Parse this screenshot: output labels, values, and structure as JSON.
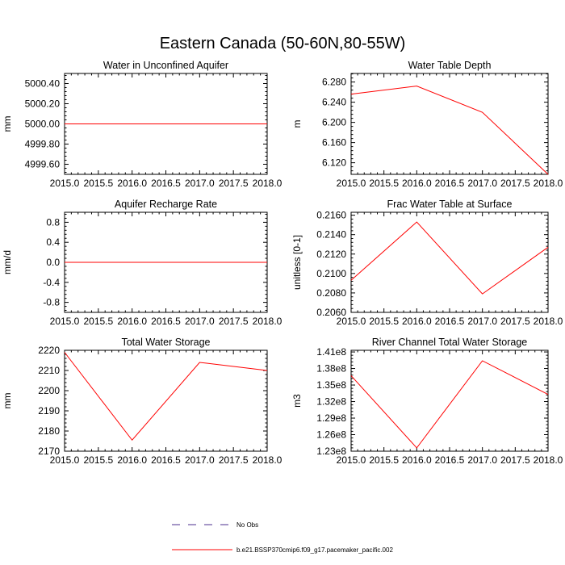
{
  "title": "Eastern Canada (50-60N,80-55W)",
  "colors": {
    "model": "#ff0000",
    "obs": "#4b2f8f",
    "frame": "#000000"
  },
  "legend": {
    "obs_label": "No Obs",
    "model_label": "b.e21.BSSP370cmip6.f09_g17.pacemaker_pacific.002"
  },
  "chart_data": [
    {
      "type": "line",
      "title": "Water in Unconfined Aquifer",
      "ylabel": "mm",
      "xlabel": "",
      "x": [
        2015.0,
        2016.0,
        2017.0,
        2018.0
      ],
      "series": [
        {
          "name": "b.e21.BSSP370cmip6.f09_g17.pacemaker_pacific.002",
          "values": [
            5000.0,
            5000.0,
            5000.0,
            5000.0
          ]
        }
      ],
      "xlim": [
        2015.0,
        2018.0
      ],
      "ylim": [
        4999.5,
        5000.5
      ],
      "xticks": [
        2015.0,
        2015.5,
        2016.0,
        2016.5,
        2017.0,
        2017.5,
        2018.0
      ],
      "xtick_labels": [
        "2015.0",
        "2015.5",
        "2016.0",
        "2016.5",
        "2017.0",
        "2017.5",
        "2018.0"
      ],
      "yticks": [
        4999.6,
        4999.8,
        5000.0,
        5000.2,
        5000.4
      ],
      "ytick_labels": [
        "4999.60",
        "4999.80",
        "5000.00",
        "5000.20",
        "5000.40"
      ]
    },
    {
      "type": "line",
      "title": "Water Table Depth",
      "ylabel": "m",
      "xlabel": "",
      "x": [
        2015.0,
        2016.0,
        2017.0,
        2018.0
      ],
      "series": [
        {
          "name": "b.e21.BSSP370cmip6.f09_g17.pacemaker_pacific.002",
          "values": [
            6.256,
            6.272,
            6.22,
            6.097
          ]
        }
      ],
      "xlim": [
        2015.0,
        2018.0
      ],
      "ylim": [
        6.097,
        6.297
      ],
      "xticks": [
        2015.0,
        2015.5,
        2016.0,
        2016.5,
        2017.0,
        2017.5,
        2018.0
      ],
      "xtick_labels": [
        "2015.0",
        "2015.5",
        "2016.0",
        "2016.5",
        "2017.0",
        "2017.5",
        "2018.0"
      ],
      "yticks": [
        6.12,
        6.16,
        6.2,
        6.24,
        6.28
      ],
      "ytick_labels": [
        "6.120",
        "6.160",
        "6.200",
        "6.240",
        "6.280"
      ]
    },
    {
      "type": "line",
      "title": "Aquifer Recharge Rate",
      "ylabel": "mm/d",
      "xlabel": "",
      "x": [
        2015.0,
        2016.0,
        2017.0,
        2018.0
      ],
      "series": [
        {
          "name": "b.e21.BSSP370cmip6.f09_g17.pacemaker_pacific.002",
          "values": [
            0.0,
            0.0,
            0.0,
            0.0
          ]
        }
      ],
      "xlim": [
        2015.0,
        2018.0
      ],
      "ylim": [
        -1.0,
        1.0
      ],
      "xticks": [
        2015.0,
        2015.5,
        2016.0,
        2016.5,
        2017.0,
        2017.5,
        2018.0
      ],
      "xtick_labels": [
        "2015.0",
        "2015.5",
        "2016.0",
        "2016.5",
        "2017.0",
        "2017.5",
        "2018.0"
      ],
      "yticks": [
        -0.8,
        -0.4,
        0.0,
        0.4,
        0.8
      ],
      "ytick_labels": [
        "-0.8",
        "-0.4",
        "0.0",
        "0.4",
        "0.8"
      ]
    },
    {
      "type": "line",
      "title": "Frac Water Table at Surface",
      "ylabel": "unitless [0-1]",
      "xlabel": "",
      "x": [
        2015.0,
        2016.0,
        2017.0,
        2018.0
      ],
      "series": [
        {
          "name": "b.e21.BSSP370cmip6.f09_g17.pacemaker_pacific.002",
          "values": [
            0.2093,
            0.2153,
            0.2079,
            0.2127
          ]
        }
      ],
      "xlim": [
        2015.0,
        2018.0
      ],
      "ylim": [
        0.206,
        0.2163
      ],
      "xticks": [
        2015.0,
        2015.5,
        2016.0,
        2016.5,
        2017.0,
        2017.5,
        2018.0
      ],
      "xtick_labels": [
        "2015.0",
        "2015.5",
        "2016.0",
        "2016.5",
        "2017.0",
        "2017.5",
        "2018.0"
      ],
      "yticks": [
        0.206,
        0.208,
        0.21,
        0.212,
        0.214,
        0.216
      ],
      "ytick_labels": [
        "0.2060",
        "0.2080",
        "0.2100",
        "0.2120",
        "0.2140",
        "0.2160"
      ]
    },
    {
      "type": "line",
      "title": "Total Water Storage",
      "ylabel": "mm",
      "xlabel": "",
      "x": [
        2015.0,
        2016.0,
        2017.0,
        2018.0
      ],
      "series": [
        {
          "name": "b.e21.BSSP370cmip6.f09_g17.pacemaker_pacific.002",
          "values": [
            2219.0,
            2175.5,
            2214.0,
            2210.0
          ]
        }
      ],
      "xlim": [
        2015.0,
        2018.0
      ],
      "ylim": [
        2170.0,
        2220.0
      ],
      "xticks": [
        2015.0,
        2015.5,
        2016.0,
        2016.5,
        2017.0,
        2017.5,
        2018.0
      ],
      "xtick_labels": [
        "2015.0",
        "2015.5",
        "2016.0",
        "2016.5",
        "2017.0",
        "2017.5",
        "2018.0"
      ],
      "yticks": [
        2170,
        2180,
        2190,
        2200,
        2210,
        2220
      ],
      "ytick_labels": [
        "2170",
        "2180",
        "2190",
        "2200",
        "2210",
        "2220"
      ]
    },
    {
      "type": "line",
      "title": "River Channel Total Water Storage",
      "ylabel": "m3",
      "xlabel": "",
      "x": [
        2015.0,
        2016.0,
        2017.0,
        2018.0
      ],
      "series": [
        {
          "name": "b.e21.BSSP370cmip6.f09_g17.pacemaker_pacific.002",
          "values": [
            136700000,
            123600000,
            139400000,
            133300000
          ]
        }
      ],
      "xlim": [
        2015.0,
        2018.0
      ],
      "ylim": [
        123000000,
        141300000
      ],
      "xticks": [
        2015.0,
        2015.5,
        2016.0,
        2016.5,
        2017.0,
        2017.5,
        2018.0
      ],
      "xtick_labels": [
        "2015.0",
        "2015.5",
        "2016.0",
        "2016.5",
        "2017.0",
        "2017.5",
        "2018.0"
      ],
      "yticks": [
        123000000,
        126000000,
        129000000,
        132000000,
        135000000,
        138000000,
        141000000
      ],
      "ytick_labels": [
        "1.23e8",
        "1.26e8",
        "1.29e8",
        "1.32e8",
        "1.35e8",
        "1.38e8",
        "1.41e8"
      ]
    }
  ]
}
